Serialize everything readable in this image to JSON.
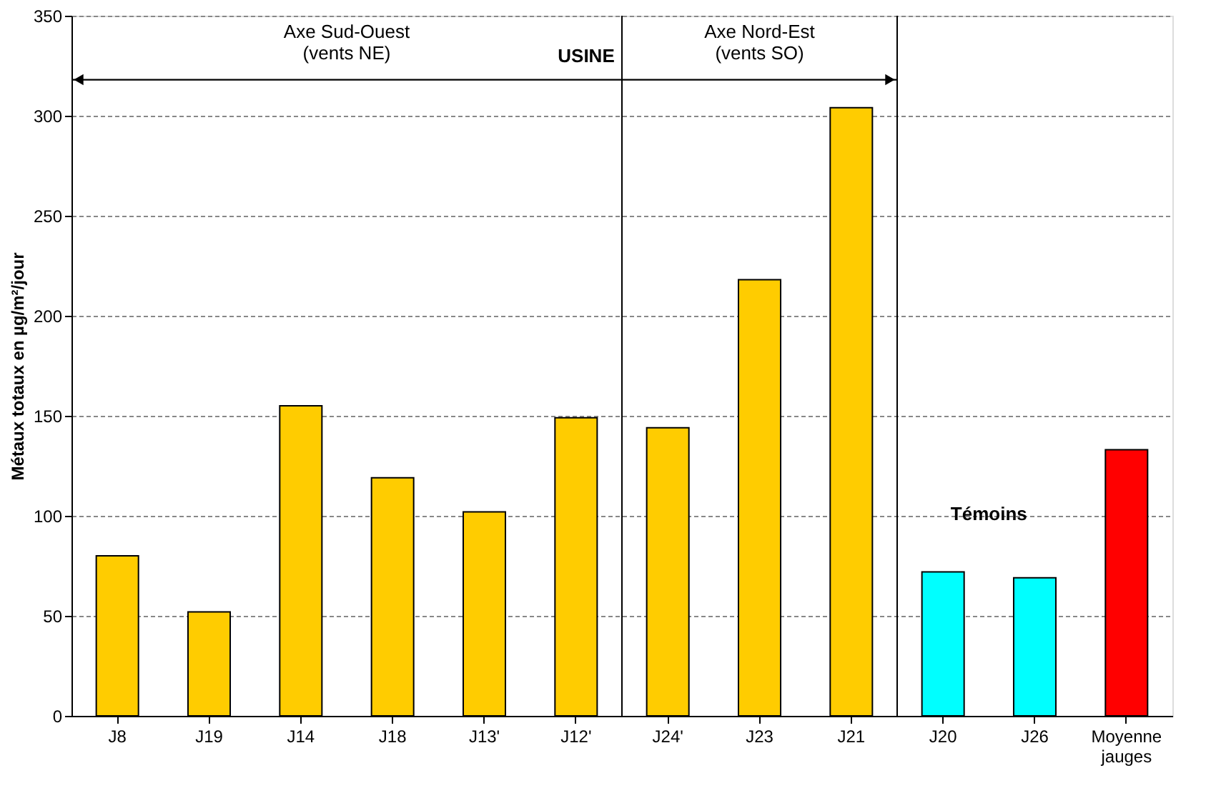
{
  "chart_data": {
    "type": "bar",
    "ylabel": "Métaux totaux en µg/m²/jour",
    "categories": [
      "J8",
      "J19",
      "J14",
      "J18",
      "J13'",
      "J12'",
      "J24'",
      "J23",
      "J21",
      "J20",
      "J26",
      "Moyenne jauges"
    ],
    "values": [
      80,
      52,
      155,
      119,
      102,
      149,
      144,
      218,
      304,
      72,
      69,
      133
    ],
    "colors": [
      "#ffcc00",
      "#ffcc00",
      "#ffcc00",
      "#ffcc00",
      "#ffcc00",
      "#ffcc00",
      "#ffcc00",
      "#ffcc00",
      "#ffcc00",
      "#00ffff",
      "#00ffff",
      "#ff0000"
    ],
    "ylim": [
      0,
      350
    ],
    "yticks": [
      0,
      50,
      100,
      150,
      200,
      250,
      300,
      350
    ],
    "grid": "y",
    "annotations": [
      "Axe Sud-Ouest\n(vents NE)",
      "USINE",
      "Axe Nord-Est\n(vents SO)",
      "Témoins"
    ]
  }
}
